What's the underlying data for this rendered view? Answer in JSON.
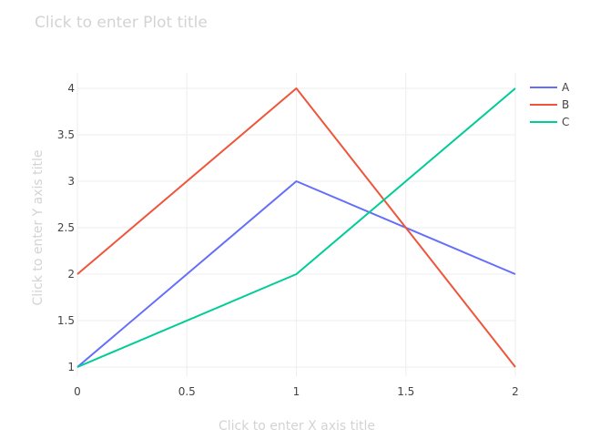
{
  "placeholders": {
    "title": "Click to enter Plot title",
    "xaxis": "Click to enter X axis title",
    "yaxis": "Click to enter Y axis title"
  },
  "chart_data": {
    "type": "line",
    "x": [
      0,
      1,
      2
    ],
    "series": [
      {
        "name": "A",
        "color": "#636efa",
        "values": [
          1,
          3,
          2
        ]
      },
      {
        "name": "B",
        "color": "#ef553b",
        "values": [
          2,
          4,
          1
        ]
      },
      {
        "name": "C",
        "color": "#00cc96",
        "values": [
          1,
          2,
          4
        ]
      }
    ],
    "xlim": [
      0,
      2
    ],
    "ylim": [
      1,
      4
    ],
    "xticks": [
      "0",
      "0.5",
      "1",
      "1.5",
      "2"
    ],
    "yticks": [
      "1",
      "1.5",
      "2",
      "2.5",
      "3",
      "3.5",
      "4"
    ],
    "grid": true,
    "legend_position": "top-right"
  }
}
